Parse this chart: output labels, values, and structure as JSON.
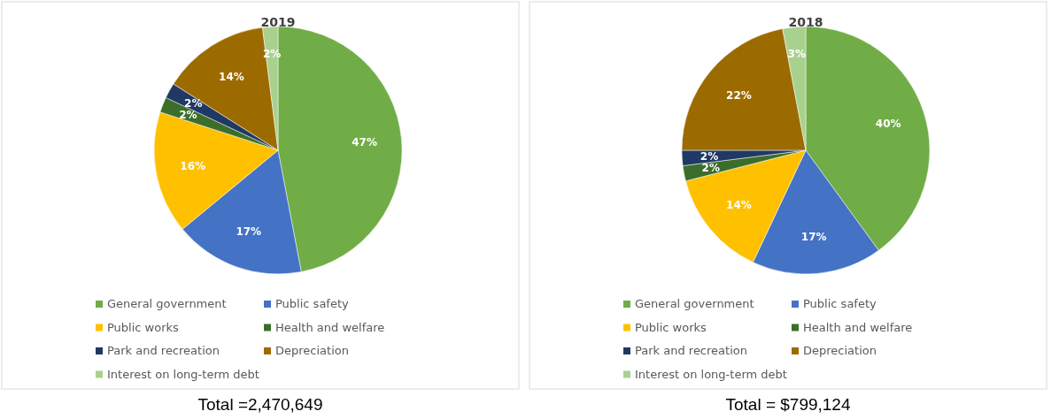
{
  "chart_data": [
    {
      "type": "pie",
      "title": "2019",
      "categories": [
        "General government",
        "Public safety",
        "Public works",
        "Health and welfare",
        "Park and recreation",
        "Depreciation",
        "Interest on long-term debt"
      ],
      "values": [
        47,
        17,
        16,
        2,
        2,
        14,
        2
      ],
      "value_labels": [
        "47%",
        "17%",
        "16%",
        "2%",
        "2%",
        "14%",
        "2%"
      ],
      "colors": [
        "#70ad47",
        "#4472c4",
        "#ffc000",
        "#3b6e2a",
        "#203864",
        "#9c6b00",
        "#a9d18e"
      ],
      "legend": "bottom",
      "annotations": [
        "Total =2,470,649"
      ]
    },
    {
      "type": "pie",
      "title": "2018",
      "categories": [
        "General government",
        "Public safety",
        "Public works",
        "Health and welfare",
        "Park and recreation",
        "Depreciation",
        "Interest on long-term debt"
      ],
      "values": [
        40,
        17,
        14,
        2,
        2,
        22,
        3
      ],
      "value_labels": [
        "40%",
        "17%",
        "14%",
        "2%",
        "2%",
        "22%",
        "3%"
      ],
      "colors": [
        "#70ad47",
        "#4472c4",
        "#ffc000",
        "#3b6e2a",
        "#203864",
        "#9c6b00",
        "#a9d18e"
      ],
      "legend": "bottom",
      "annotations": [
        "Total = $799,124"
      ]
    }
  ]
}
